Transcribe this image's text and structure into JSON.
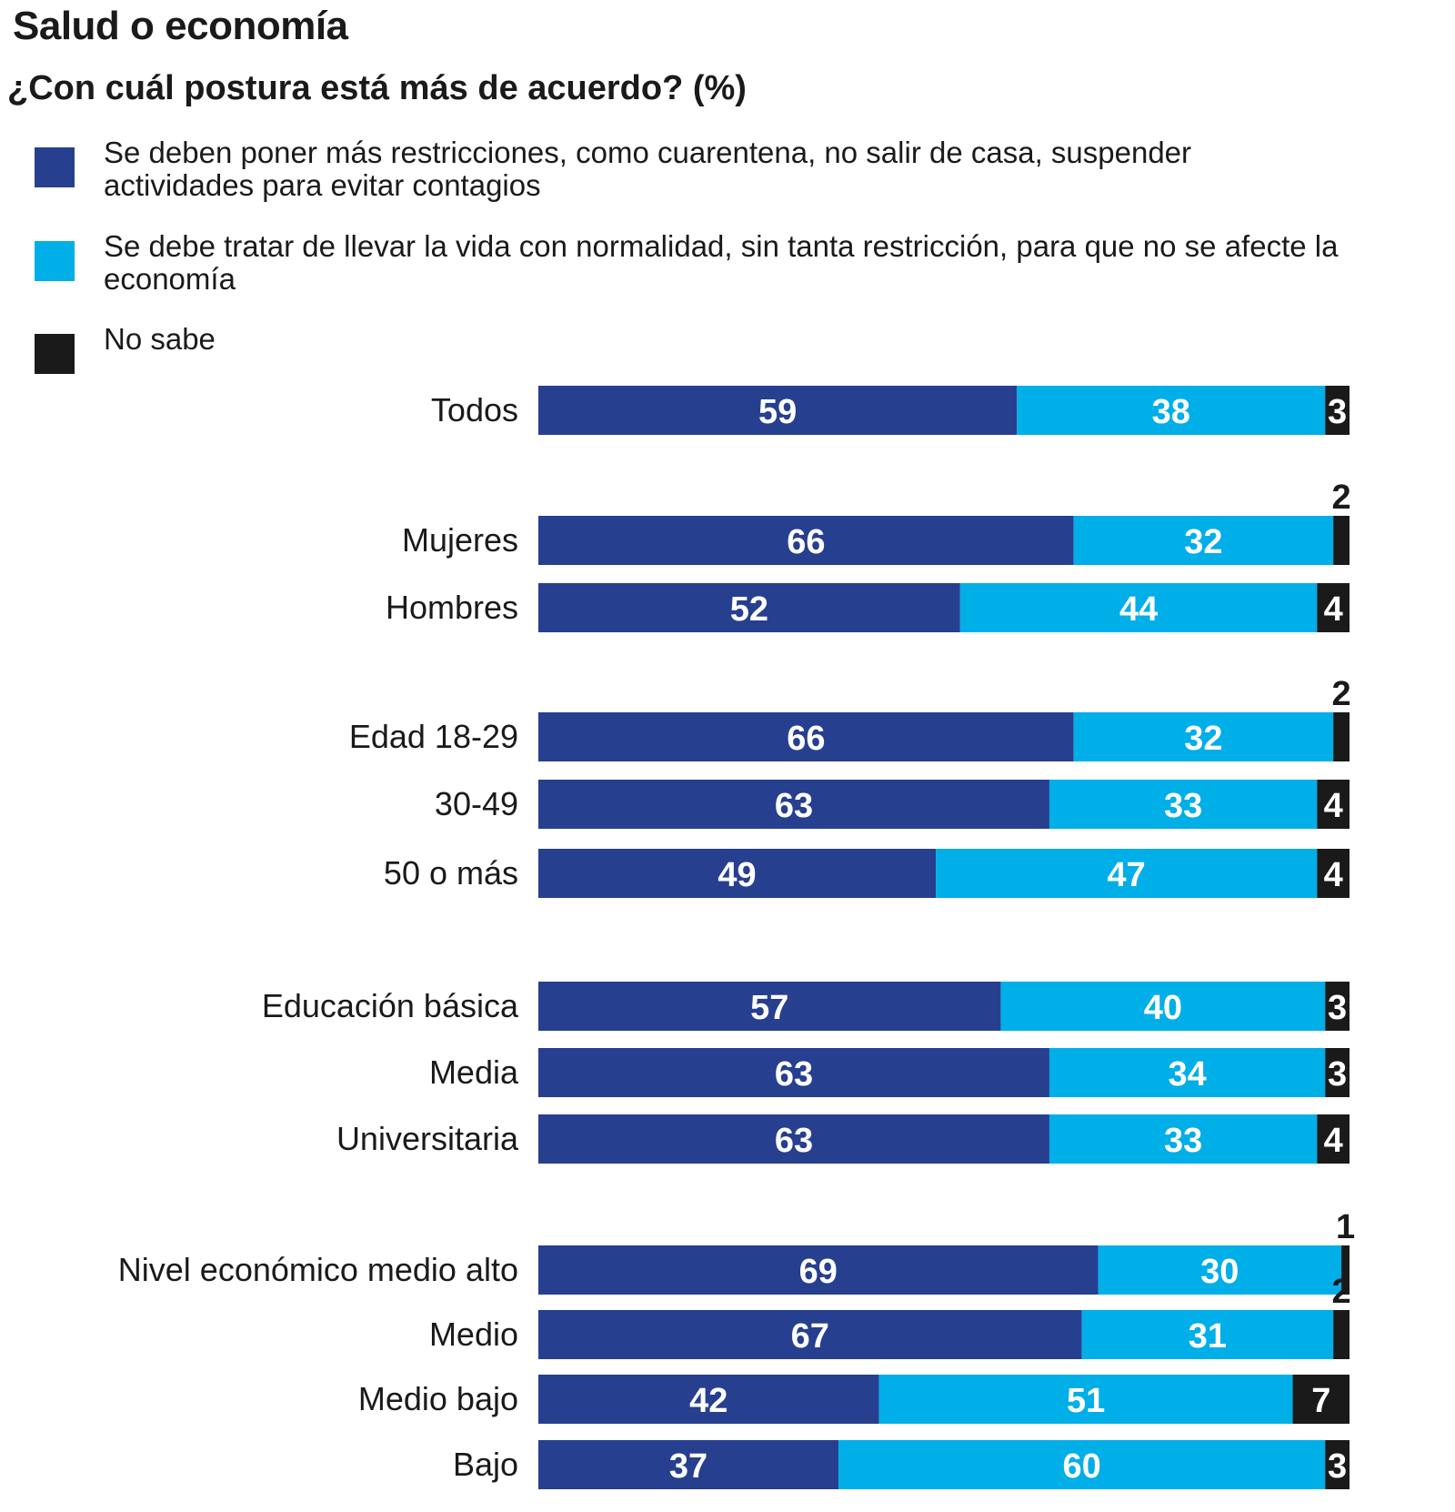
{
  "title": "Salud o economía",
  "subtitle": "¿Con cuál postura está más de acuerdo?  (%)",
  "legend": [
    {
      "label": "Se deben poner más restricciones, como cuarentena, no salir de casa, suspender actividades para evitar contagios",
      "color": "#273f8f"
    },
    {
      "label": "Se debe tratar de llevar la vida con normalidad, sin tanta restricción, para que no se afecte la economía",
      "color": "#00aee8"
    },
    {
      "label": "No sabe",
      "color": "#1a1a1a"
    }
  ],
  "chart_data": {
    "type": "bar",
    "orientation": "horizontal",
    "stacked": true,
    "title": "Salud o economía",
    "subtitle": "¿Con cuál postura está más de acuerdo?  (%)",
    "xlim": [
      0,
      100
    ],
    "categories": [
      "Todos",
      "Mujeres",
      "Hombres",
      "Edad 18-29",
      "30-49",
      "50 o más",
      "Educación básica",
      "Media",
      "Universitaria",
      "Nivel económico medio alto",
      "Medio",
      "Medio bajo",
      "Bajo"
    ],
    "series": [
      {
        "name": "Se deben poner más restricciones, como cuarentena, no salir de casa, suspender actividades para evitar contagios",
        "color": "#273f8f",
        "values": [
          59,
          66,
          52,
          66,
          63,
          49,
          57,
          63,
          63,
          69,
          67,
          42,
          37
        ]
      },
      {
        "name": "Se debe tratar de llevar la vida con normalidad, sin tanta restricción, para que no se afecte la economía",
        "color": "#00aee8",
        "values": [
          38,
          32,
          44,
          32,
          33,
          47,
          40,
          34,
          33,
          30,
          31,
          51,
          60
        ]
      },
      {
        "name": "No sabe",
        "color": "#1a1a1a",
        "values": [
          3,
          2,
          4,
          2,
          4,
          4,
          3,
          3,
          4,
          1,
          2,
          7,
          3
        ]
      }
    ]
  }
}
